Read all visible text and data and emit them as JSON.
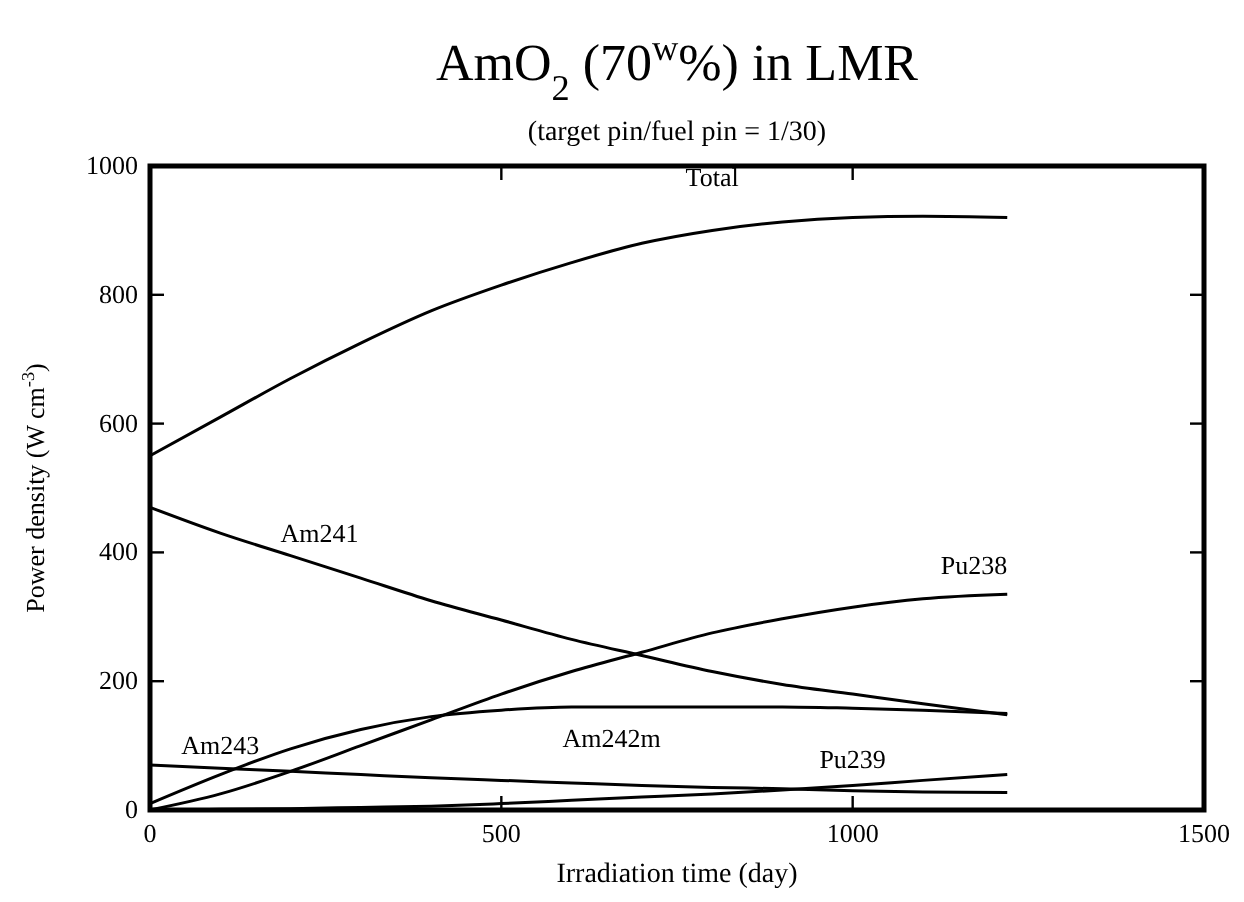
{
  "chart_data": {
    "type": "line",
    "title": "AmO$_{2}$ (70$^{w}$%) in LMR",
    "subtitle": "(target pin/fuel pin = 1/30)",
    "xlabel": "Irradiation time (day)",
    "ylabel": "Power density (W cm$^{-3}$)",
    "x": [
      0,
      100,
      200,
      300,
      400,
      500,
      600,
      700,
      800,
      900,
      1000,
      1100,
      1220
    ],
    "xlim": [
      0,
      1500
    ],
    "xticks": [
      0,
      500,
      1000,
      1500
    ],
    "ylim": [
      0,
      1000
    ],
    "yticks": [
      0,
      200,
      400,
      600,
      800,
      1000
    ],
    "grid": false,
    "legend": false,
    "marker": "none",
    "line_style": "solid",
    "series": [
      {
        "name": "Total",
        "color": "#000000",
        "values": [
          550,
          610,
          670,
          725,
          775,
          815,
          850,
          880,
          900,
          913,
          920,
          922,
          920
        ]
      },
      {
        "name": "Am241",
        "color": "#000000",
        "values": [
          470,
          430,
          395,
          360,
          325,
          295,
          265,
          240,
          215,
          195,
          180,
          165,
          148
        ]
      },
      {
        "name": "Pu238",
        "color": "#000000",
        "values": [
          0,
          25,
          60,
          100,
          140,
          180,
          215,
          245,
          275,
          297,
          315,
          328,
          335
        ]
      },
      {
        "name": "Am242m",
        "color": "#000000",
        "values": [
          10,
          55,
          95,
          125,
          145,
          155,
          160,
          160,
          160,
          160,
          158,
          155,
          150
        ]
      },
      {
        "name": "Am243",
        "color": "#000000",
        "values": [
          70,
          65,
          60,
          55,
          50,
          46,
          42,
          38,
          35,
          33,
          30,
          28,
          27
        ]
      },
      {
        "name": "Pu239",
        "color": "#000000",
        "values": [
          0,
          1,
          2,
          4,
          6,
          10,
          15,
          20,
          25,
          31,
          38,
          46,
          55
        ]
      }
    ]
  }
}
